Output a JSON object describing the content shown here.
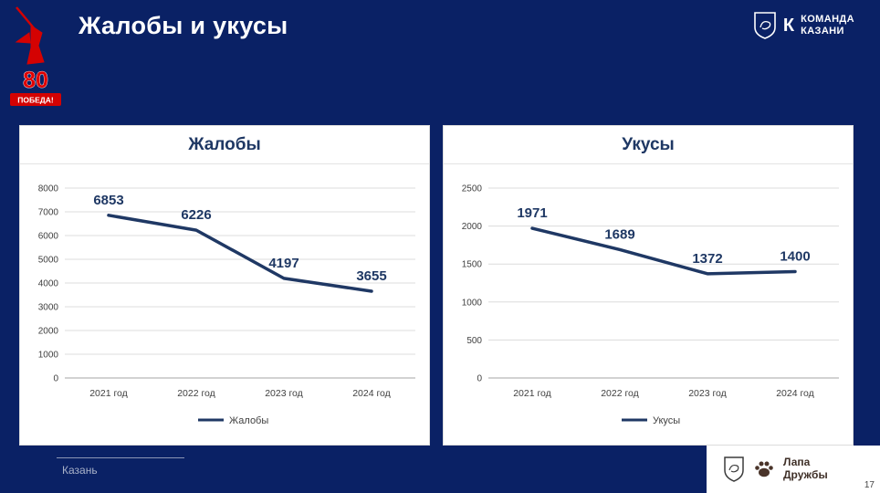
{
  "slide": {
    "title": "Жалобы и укусы",
    "page_number": "17",
    "footer_city": "Казань"
  },
  "logos": {
    "victory": {
      "number": "80",
      "text": "ПОБЕДА!"
    },
    "kazan_team": {
      "monogram": "К",
      "line1": "КОМАНДА",
      "line2": "КАЗАНИ"
    },
    "partner": {
      "line1": "Лапа",
      "line2": "Дружбы"
    }
  },
  "colors": {
    "background": "#0a2165",
    "accent_red": "#d40202",
    "chart_line": "#1f3864"
  },
  "chart_data": [
    {
      "type": "line",
      "title": "Жалобы",
      "categories": [
        "2021 год",
        "2022 год",
        "2023 год",
        "2024 год"
      ],
      "values": [
        6853,
        6226,
        4197,
        3655
      ],
      "ylim": [
        0,
        8000
      ],
      "ytick_step": 1000,
      "legend": "Жалобы",
      "legend_position": "bottom",
      "grid": true,
      "line_color": "#1f3864"
    },
    {
      "type": "line",
      "title": "Укусы",
      "categories": [
        "2021 год",
        "2022 год",
        "2023 год",
        "2024 год"
      ],
      "values": [
        1971,
        1689,
        1372,
        1400
      ],
      "ylim": [
        0,
        2500
      ],
      "ytick_step": 500,
      "legend": "Укусы",
      "legend_position": "bottom",
      "grid": true,
      "line_color": "#1f3864"
    }
  ]
}
